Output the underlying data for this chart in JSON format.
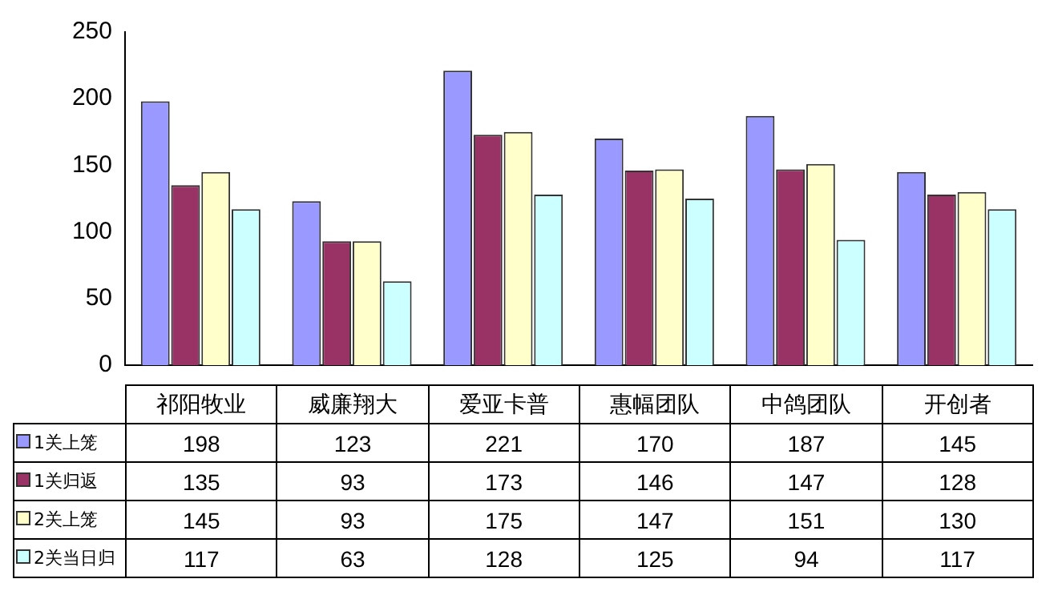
{
  "chart_data": {
    "type": "bar",
    "categories": [
      "祁阳牧业",
      "威廉翔大",
      "爱亚卡普",
      "惠幅团队",
      "中鸽团队",
      "开创者"
    ],
    "series": [
      {
        "name": "1关上笼",
        "color": "#9999ff",
        "values": [
          198,
          123,
          221,
          170,
          187,
          145
        ]
      },
      {
        "name": "1关归返",
        "color": "#993366",
        "values": [
          135,
          93,
          173,
          146,
          147,
          128
        ]
      },
      {
        "name": "2关上笼",
        "color": "#ffffcc",
        "values": [
          145,
          93,
          175,
          147,
          151,
          130
        ]
      },
      {
        "name": "2关当日归",
        "color": "#ccffff",
        "values": [
          117,
          63,
          128,
          125,
          94,
          117
        ]
      }
    ],
    "ylim": [
      0,
      250
    ],
    "yticks": [
      0,
      50,
      100,
      150,
      200,
      250
    ],
    "grid": false,
    "legend": "bottom left",
    "data_labels": true
  }
}
